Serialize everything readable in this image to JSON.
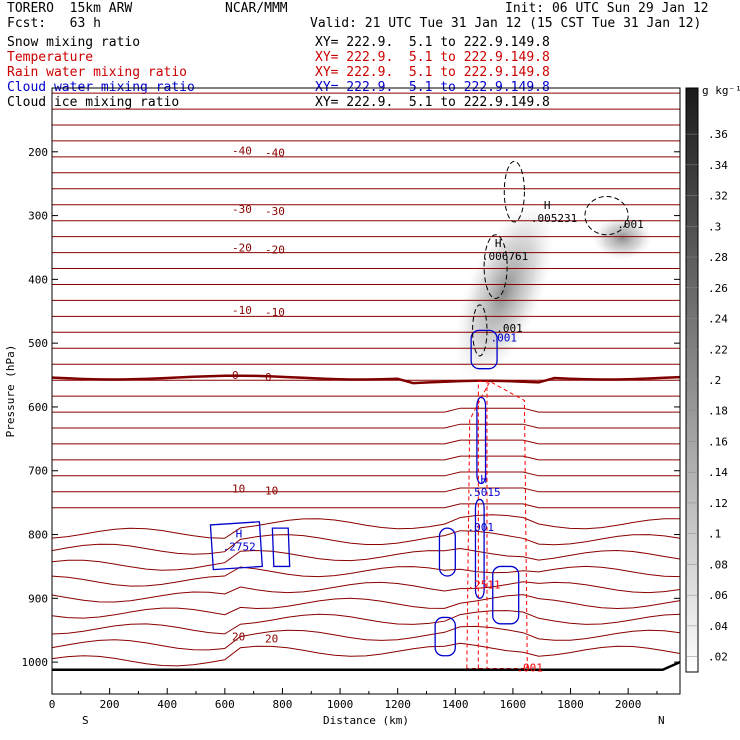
{
  "header": {
    "model": "TORERO  15km ARW",
    "center": "NCAR/MMM",
    "init": "Init: 06 UTC Sun 29 Jan 12",
    "fcst": "Fcst:   63 h",
    "valid": "Valid: 21 UTC Tue 31 Jan 12 (15 CST Tue 31 Jan 12)"
  },
  "legend": [
    {
      "label": "Snow mixing ratio",
      "xy": "XY= 222.9.  5.1 to 222.9.149.8",
      "color": "#000000"
    },
    {
      "label": "Temperature",
      "xy": "XY= 222.9.  5.1 to 222.9.149.8",
      "color": "#cc0000"
    },
    {
      "label": "Rain water mixing ratio",
      "xy": "XY= 222.9.  5.1 to 222.9.149.8",
      "color": "#cc0000"
    },
    {
      "label": "Cloud water mixing ratio",
      "xy": "XY= 222.9.  5.1 to 222.9.149.8",
      "color": "#0000cc"
    },
    {
      "label": "Cloud ice mixing ratio",
      "xy": "XY= 222.9.  5.1 to 222.9.149.8",
      "color": "#000000"
    }
  ],
  "colors": {
    "temperature": "#8b0000",
    "freezing": "#800000",
    "rain": "#ff0000",
    "cloud_water": "#0000cc",
    "snow": "#000000"
  },
  "chart_data": {
    "type": "cross-section contour",
    "xlabel": "Distance (km)",
    "ylabel": "Pressure (hPa)",
    "xlim": [
      0,
      2180
    ],
    "ylim": [
      1050,
      100
    ],
    "x_ticks": [
      "0",
      "200",
      "400",
      "600",
      "800",
      "1000",
      "1200",
      "1400",
      "1600",
      "1800",
      "2000"
    ],
    "y_ticks": [
      "200",
      "300",
      "400",
      "500",
      "600",
      "700",
      "800",
      "900",
      "1000"
    ],
    "end_labels": {
      "left": "S",
      "right": "N"
    },
    "colorbar": {
      "units": "g kg⁻¹",
      "ticks": [
        ".36",
        ".34",
        ".32",
        ".3",
        ".28",
        ".26",
        ".24",
        ".22",
        ".2",
        ".18",
        ".16",
        ".14",
        ".12",
        ".1",
        ".08",
        ".06",
        ".04",
        ".02"
      ]
    },
    "temperature_contours": [
      {
        "label": "-40",
        "pressure_left": 198
      },
      {
        "label": "-30",
        "pressure_left": 290
      },
      {
        "label": "-20",
        "pressure_left": 350
      },
      {
        "label": "-10",
        "pressure_left": 448
      },
      {
        "label": "0",
        "pressure_left": 550
      },
      {
        "label": "10",
        "pressure_left": 728
      },
      {
        "label": "20",
        "pressure_left": 960
      }
    ],
    "annotations": [
      {
        "text": "H",
        "value": ".005231",
        "x": 1690,
        "p": 305,
        "series": "snow"
      },
      {
        "text": "H",
        "value": ".006761",
        "x": 1520,
        "p": 365,
        "series": "snow"
      },
      {
        "text": "H",
        "value": ".2752",
        "x": 620,
        "p": 820,
        "series": "cloud_water"
      },
      {
        "text": "H",
        "value": ".5015",
        "x": 1470,
        "p": 735,
        "series": "cloud_water"
      },
      {
        "text": "",
        "value": ".001",
        "x": 1570,
        "p": 478,
        "series": "snow"
      },
      {
        "text": "",
        "value": ".001",
        "x": 1990,
        "p": 315,
        "series": "snow"
      },
      {
        "text": "",
        "value": ".001",
        "x": 1550,
        "p": 493,
        "series": "cloud_water"
      },
      {
        "text": "",
        "value": ".001",
        "x": 1470,
        "p": 790,
        "series": "cloud_water"
      },
      {
        "text": "",
        "value": ".001",
        "x": 1640,
        "p": 1010,
        "series": "rain"
      },
      {
        "text": "",
        "value": ".2511",
        "x": 1470,
        "p": 880,
        "series": "rain"
      }
    ]
  }
}
